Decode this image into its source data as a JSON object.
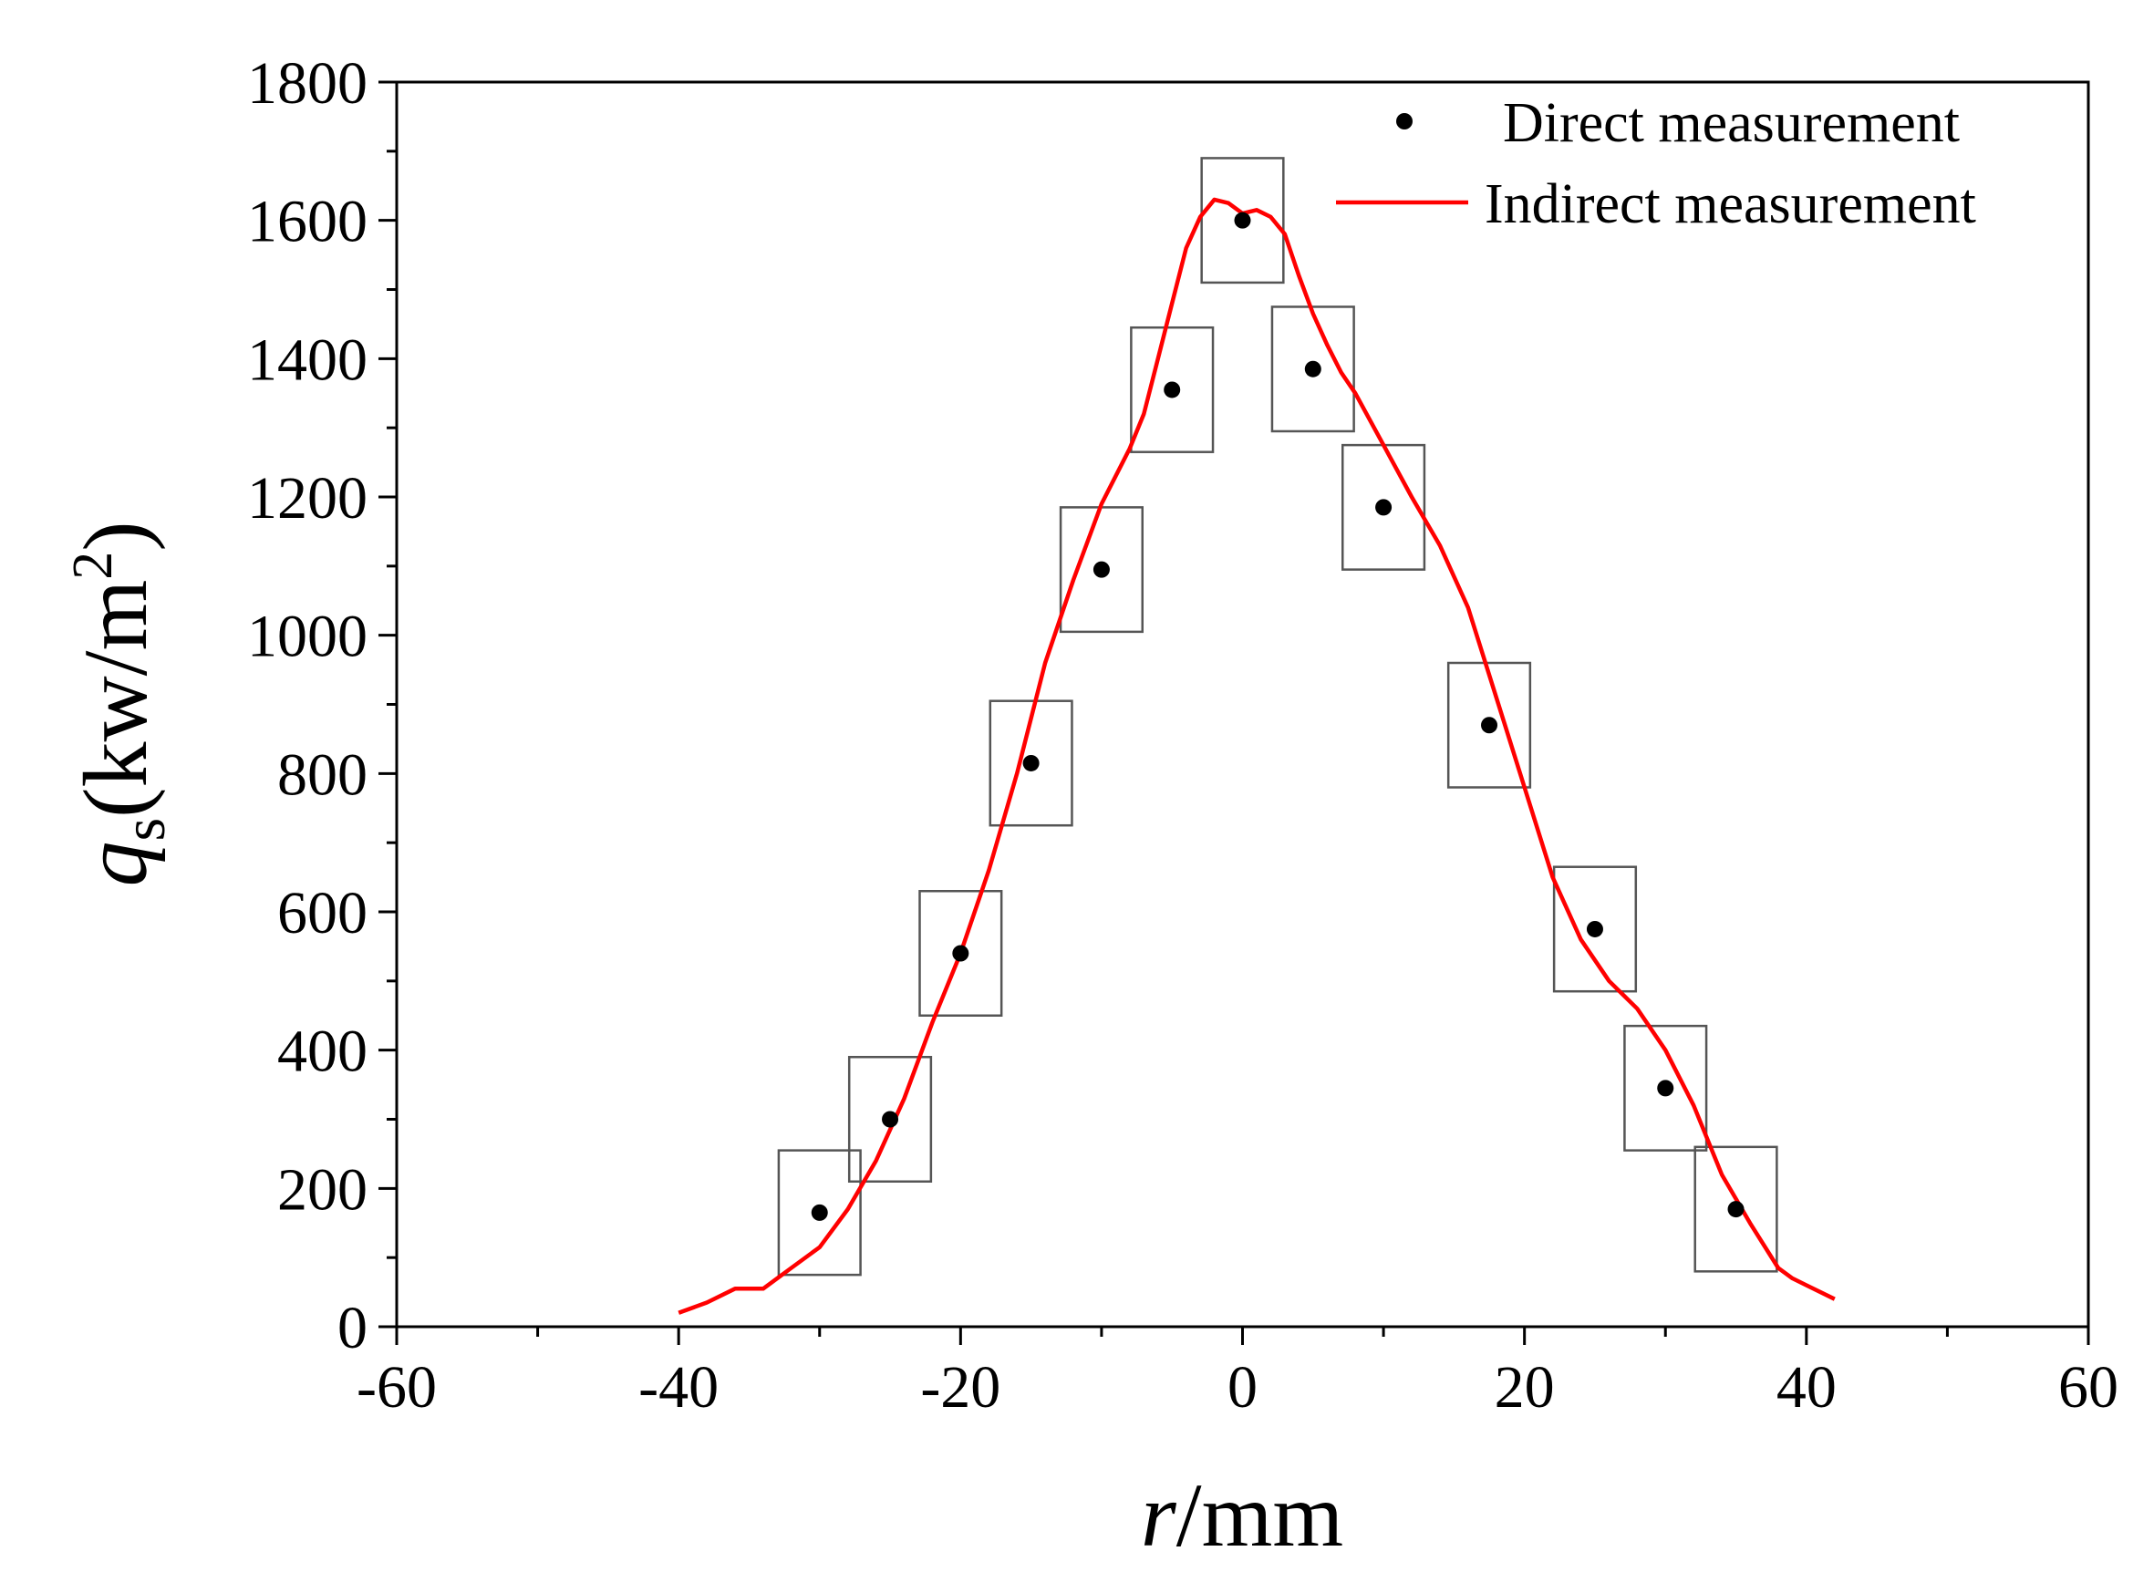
{
  "chart_data": {
    "type": "scatter",
    "title": "",
    "xlabel_var": "r",
    "xlabel_unit": "/mm",
    "ylabel_var": "q",
    "ylabel_sub": "s",
    "ylabel_unit_open": "(kw/m",
    "ylabel_sup": "2",
    "ylabel_close": ")",
    "xlim": [
      -60,
      60
    ],
    "ylim": [
      0,
      1800
    ],
    "x_ticks": [
      -60,
      -40,
      -20,
      0,
      20,
      40,
      60
    ],
    "x_tick_labels": [
      "-60",
      "-40",
      "-20",
      "0",
      "20",
      "40",
      "60"
    ],
    "y_ticks": [
      0,
      200,
      400,
      600,
      800,
      1000,
      1200,
      1400,
      1600,
      1800
    ],
    "y_tick_labels": [
      "0",
      "200",
      "400",
      "600",
      "800",
      "1000",
      "1200",
      "1400",
      "1600",
      "1800"
    ],
    "legend_position": "top-right",
    "colors": {
      "axes": "#000000",
      "direct": "#000000",
      "indirect": "#ff0000",
      "box": "#555555"
    },
    "series": [
      {
        "name": "Direct measurement",
        "kind": "points",
        "x": [
          -30,
          -25,
          -20,
          -15,
          -10,
          -5,
          0,
          5,
          10,
          17.5,
          25,
          30,
          35
        ],
        "y": [
          165,
          300,
          540,
          815,
          1095,
          1355,
          1600,
          1385,
          1185,
          870,
          575,
          345,
          170
        ],
        "box_half_width": 2.9,
        "box_half_height": 90
      },
      {
        "name": "Indirect measurement",
        "kind": "line",
        "x": [
          -40,
          -38,
          -36,
          -34,
          -32,
          -30,
          -28,
          -26,
          -24,
          -22,
          -20,
          -18,
          -16,
          -14,
          -12,
          -10,
          -8,
          -7,
          -6,
          -5,
          -4,
          -3,
          -2,
          -1,
          0,
          1,
          2,
          3,
          4,
          5,
          6,
          7,
          8,
          10,
          12,
          14,
          16,
          18,
          20,
          22,
          24,
          26,
          28,
          30,
          32,
          34,
          36,
          38,
          39,
          40,
          42
        ],
        "y": [
          20,
          35,
          55,
          55,
          85,
          115,
          170,
          240,
          330,
          440,
          540,
          660,
          800,
          960,
          1080,
          1190,
          1270,
          1320,
          1400,
          1480,
          1560,
          1605,
          1630,
          1625,
          1610,
          1615,
          1605,
          1580,
          1520,
          1465,
          1420,
          1380,
          1350,
          1275,
          1200,
          1130,
          1040,
          910,
          780,
          650,
          560,
          500,
          460,
          400,
          320,
          220,
          150,
          85,
          70,
          60,
          40
        ]
      }
    ]
  }
}
